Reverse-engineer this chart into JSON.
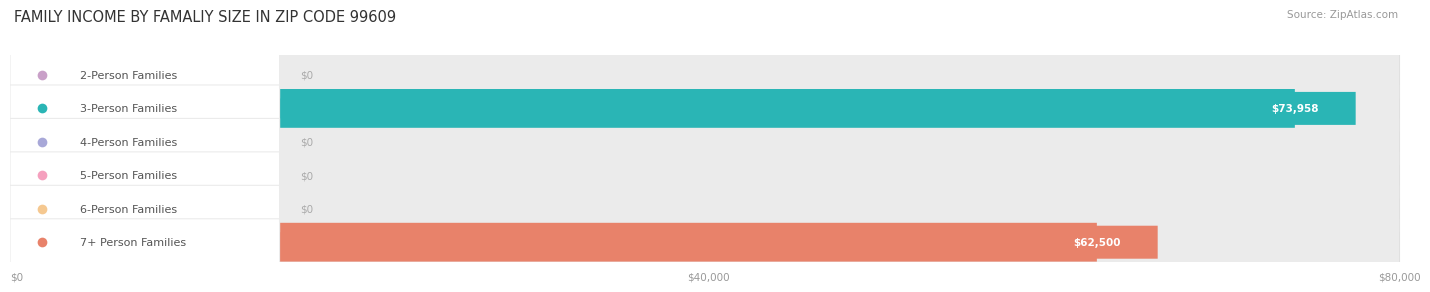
{
  "title": "FAMILY INCOME BY FAMALIY SIZE IN ZIP CODE 99609",
  "source": "Source: ZipAtlas.com",
  "categories": [
    "2-Person Families",
    "3-Person Families",
    "4-Person Families",
    "5-Person Families",
    "6-Person Families",
    "7+ Person Families"
  ],
  "values": [
    0,
    73958,
    0,
    0,
    0,
    62500
  ],
  "bar_colors": [
    "#c9a0c8",
    "#2ab5b5",
    "#a8a8d8",
    "#f5a0be",
    "#f5c890",
    "#e8826a"
  ],
  "xlim_max": 80000,
  "xtick_labels": [
    "$0",
    "$40,000",
    "$80,000"
  ],
  "xtick_vals": [
    0,
    40000,
    80000
  ],
  "background_color": "#ffffff",
  "bar_bg_color": "#ebebeb",
  "title_fontsize": 10.5,
  "source_fontsize": 7.5,
  "label_fontsize": 8.0,
  "value_fontsize": 7.5
}
